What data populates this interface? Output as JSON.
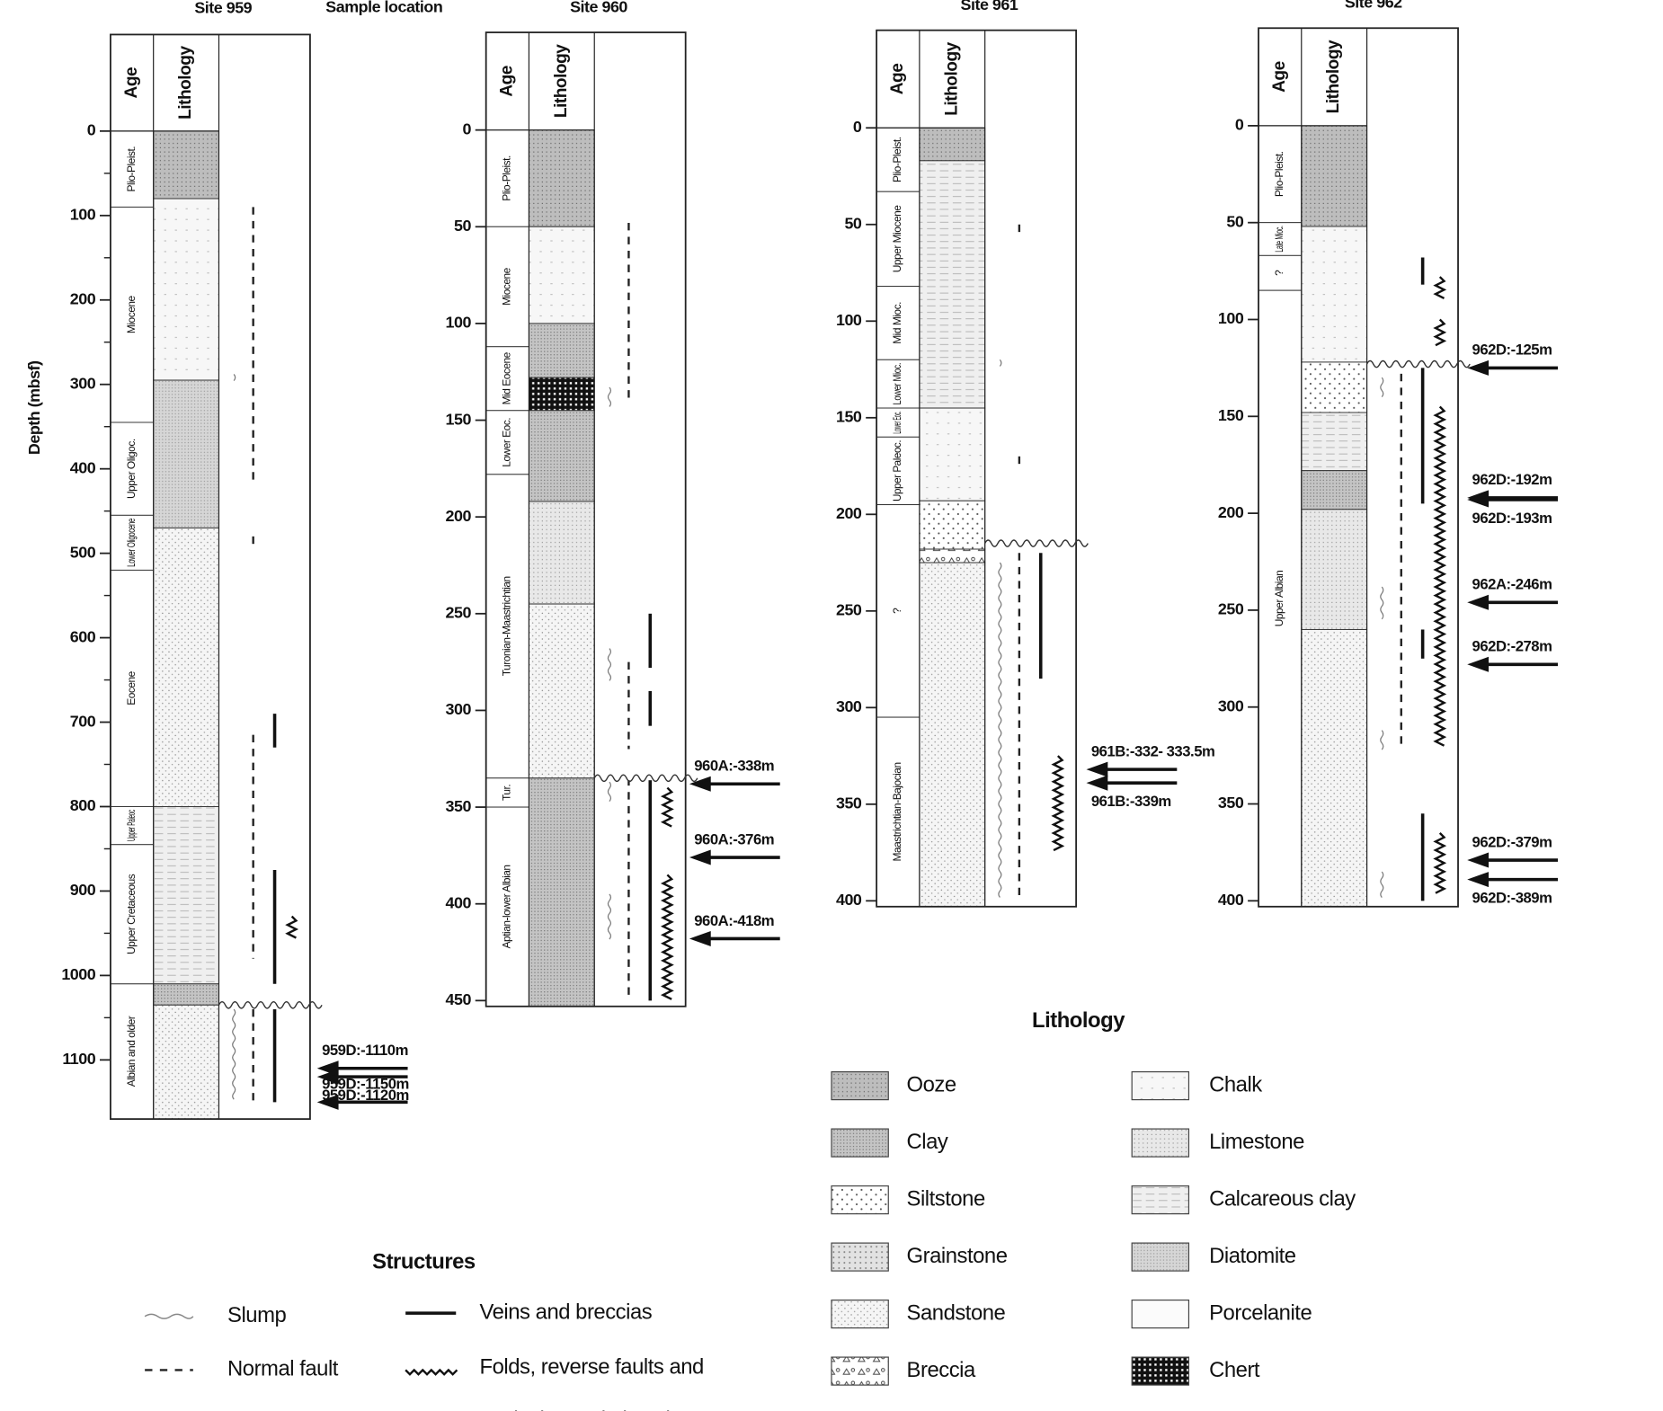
{
  "header": {
    "sample_location": "Sample location",
    "y_axis_label": "Depth (mbsf)"
  },
  "sites": [
    {
      "title": "Site 959",
      "column_headers": [
        "Age",
        "Lithology"
      ],
      "ylim": [
        0,
        1170
      ],
      "ticks": [
        0,
        100,
        200,
        300,
        400,
        500,
        600,
        700,
        800,
        900,
        1000,
        1100
      ],
      "minor_ticks": true,
      "ages": [
        {
          "label": "Plio-Pleist.",
          "top": 0,
          "bottom": 90
        },
        {
          "label": "Miocene",
          "top": 90,
          "bottom": 345
        },
        {
          "label": "Upper Oligoc.",
          "top": 345,
          "bottom": 455
        },
        {
          "label": "Lower Oligocene",
          "top": 455,
          "bottom": 520
        },
        {
          "label": "Eocene",
          "top": 520,
          "bottom": 800
        },
        {
          "label": "Upper Paleoc",
          "top": 800,
          "bottom": 845
        },
        {
          "label": "Upper Cretaceous",
          "top": 845,
          "bottom": 1010
        },
        {
          "label": "Albian and older",
          "top": 1010,
          "bottom": 1170
        }
      ],
      "lithology": [
        {
          "type": "Ooze",
          "top": 0,
          "bottom": 80
        },
        {
          "type": "Chalk",
          "top": 80,
          "bottom": 295
        },
        {
          "type": "Diatomite",
          "top": 295,
          "bottom": 470
        },
        {
          "type": "Sandstone",
          "top": 470,
          "bottom": 800
        },
        {
          "type": "Calcareous clay",
          "top": 800,
          "bottom": 1010
        },
        {
          "type": "Clay",
          "top": 1010,
          "bottom": 1035
        },
        {
          "type": "Sandstone",
          "top": 1035,
          "bottom": 1170
        }
      ],
      "structures": [
        {
          "type": "Normal fault",
          "top": 90,
          "bottom": 420
        },
        {
          "type": "Slump",
          "top": 288,
          "bottom": 300
        },
        {
          "type": "Normal fault",
          "top": 480,
          "bottom": 495
        },
        {
          "type": "Normal fault",
          "top": 715,
          "bottom": 980
        },
        {
          "type": "Veins and breccias",
          "top": 690,
          "bottom": 730
        },
        {
          "type": "Veins and breccias",
          "top": 875,
          "bottom": 1010
        },
        {
          "type": "Folds, reverse faults and",
          "top": 930,
          "bottom": 960
        },
        {
          "type": "Slump",
          "top": 1040,
          "bottom": 1150
        },
        {
          "type": "Normal fault",
          "top": 1040,
          "bottom": 1150
        },
        {
          "type": "Veins and breccias",
          "top": 1040,
          "bottom": 1150
        }
      ],
      "unconformity": 1035,
      "samples": [
        {
          "label": "959D:-1110m",
          "depth": 1110
        },
        {
          "label": "959D:-1120m",
          "depth": 1120
        },
        {
          "label": "959D:-1150m",
          "depth": 1150
        }
      ]
    },
    {
      "title": "Site 960",
      "column_headers": [
        "Age",
        "Lithology"
      ],
      "ylim": [
        0,
        453
      ],
      "ticks": [
        0,
        50,
        100,
        150,
        200,
        250,
        300,
        350,
        400,
        450
      ],
      "minor_ticks": false,
      "ages": [
        {
          "label": "Plio-Pleist.",
          "top": 0,
          "bottom": 50
        },
        {
          "label": "Miocene",
          "top": 50,
          "bottom": 112
        },
        {
          "label": "Mid Eocene",
          "top": 112,
          "bottom": 145
        },
        {
          "label": "Lower Eoc.",
          "top": 145,
          "bottom": 178
        },
        {
          "label": "Turonian-Maastrichtian",
          "top": 178,
          "bottom": 335
        },
        {
          "label": "Tur.",
          "top": 335,
          "bottom": 350
        },
        {
          "label": "Aptian-lower Albian",
          "top": 350,
          "bottom": 453
        }
      ],
      "lithology": [
        {
          "type": "Ooze",
          "top": 0,
          "bottom": 50
        },
        {
          "type": "Chalk",
          "top": 50,
          "bottom": 100
        },
        {
          "type": "Clay",
          "top": 100,
          "bottom": 128
        },
        {
          "type": "Chert",
          "top": 128,
          "bottom": 145
        },
        {
          "type": "Clay",
          "top": 145,
          "bottom": 192
        },
        {
          "type": "Limestone",
          "top": 192,
          "bottom": 245
        },
        {
          "type": "Sandstone",
          "top": 245,
          "bottom": 335
        },
        {
          "type": "Clay",
          "top": 335,
          "bottom": 453
        }
      ],
      "structures": [
        {
          "type": "Normal fault",
          "top": 48,
          "bottom": 140
        },
        {
          "type": "Slump",
          "top": 133,
          "bottom": 143
        },
        {
          "type": "Slump",
          "top": 268,
          "bottom": 285
        },
        {
          "type": "Normal fault",
          "top": 275,
          "bottom": 320
        },
        {
          "type": "Veins and breccias",
          "top": 250,
          "bottom": 278
        },
        {
          "type": "Veins and breccias",
          "top": 290,
          "bottom": 308
        },
        {
          "type": "Slump",
          "top": 337,
          "bottom": 350
        },
        {
          "type": "Normal fault",
          "top": 335,
          "bottom": 450
        },
        {
          "type": "Veins and breccias",
          "top": 335,
          "bottom": 450
        },
        {
          "type": "Folds, reverse faults and",
          "top": 340,
          "bottom": 360
        },
        {
          "type": "Folds, reverse faults and",
          "top": 385,
          "bottom": 450
        },
        {
          "type": "Slump",
          "top": 395,
          "bottom": 420
        }
      ],
      "unconformity": 335,
      "samples": [
        {
          "label": "960A:-338m",
          "depth": 338
        },
        {
          "label": "960A:-376m",
          "depth": 376
        },
        {
          "label": "960A:-418m",
          "depth": 418
        }
      ]
    },
    {
      "title": "Site 961",
      "column_headers": [
        "Age",
        "Lithology"
      ],
      "ylim": [
        0,
        403
      ],
      "ticks": [
        0,
        50,
        100,
        150,
        200,
        250,
        300,
        350,
        400
      ],
      "minor_ticks": false,
      "ages": [
        {
          "label": "Plio-Pleist.",
          "top": 0,
          "bottom": 33
        },
        {
          "label": "Upper Miocene",
          "top": 33,
          "bottom": 82
        },
        {
          "label": "Mid Mioc.",
          "top": 82,
          "bottom": 120
        },
        {
          "label": "Lower Mioc.",
          "top": 120,
          "bottom": 145
        },
        {
          "label": "Lower Eoc.",
          "top": 145,
          "bottom": 160
        },
        {
          "label": "Upper Paleoc.",
          "top": 160,
          "bottom": 195
        },
        {
          "label": "?",
          "top": 195,
          "bottom": 305
        },
        {
          "label": "Maastrichtian-Bajocian",
          "top": 305,
          "bottom": 403
        }
      ],
      "lithology": [
        {
          "type": "Ooze",
          "top": 0,
          "bottom": 17
        },
        {
          "type": "Calcareous clay",
          "top": 17,
          "bottom": 145
        },
        {
          "type": "Chalk",
          "top": 145,
          "bottom": 193
        },
        {
          "type": "Siltstone",
          "top": 193,
          "bottom": 218
        },
        {
          "type": "Breccia",
          "top": 218,
          "bottom": 225
        },
        {
          "type": "Sandstone",
          "top": 225,
          "bottom": 403
        }
      ],
      "structures": [
        {
          "type": "Normal fault",
          "top": 50,
          "bottom": 55
        },
        {
          "type": "Slump",
          "top": 120,
          "bottom": 126
        },
        {
          "type": "Normal fault",
          "top": 170,
          "bottom": 175
        },
        {
          "type": "Slump",
          "top": 225,
          "bottom": 400
        },
        {
          "type": "Normal fault",
          "top": 220,
          "bottom": 400
        },
        {
          "type": "Veins and breccias",
          "top": 220,
          "bottom": 285
        },
        {
          "type": "Folds, reverse faults and",
          "top": 325,
          "bottom": 375
        }
      ],
      "unconformity": 215,
      "samples": [
        {
          "label": "961B:-332- 333.5m",
          "depth": 332
        },
        {
          "label": "961B:-339m",
          "depth": 339
        }
      ]
    },
    {
      "title": "Site 962",
      "column_headers": [
        "Age",
        "Lithology"
      ],
      "ylim": [
        0,
        403
      ],
      "ticks": [
        0,
        50,
        100,
        150,
        200,
        250,
        300,
        350,
        400
      ],
      "minor_ticks": false,
      "ages": [
        {
          "label": "Plio-Pleist.",
          "top": 0,
          "bottom": 50
        },
        {
          "label": "Late Mioc.",
          "top": 50,
          "bottom": 67
        },
        {
          "label": "?",
          "top": 67,
          "bottom": 85
        },
        {
          "label": "Upper Albian",
          "top": 85,
          "bottom": 403
        }
      ],
      "lithology": [
        {
          "type": "Ooze",
          "top": 0,
          "bottom": 52
        },
        {
          "type": "Chalk",
          "top": 52,
          "bottom": 122
        },
        {
          "type": "Siltstone",
          "top": 122,
          "bottom": 148
        },
        {
          "type": "Calcareous clay",
          "top": 148,
          "bottom": 178
        },
        {
          "type": "Clay",
          "top": 178,
          "bottom": 198
        },
        {
          "type": "Limestone",
          "top": 198,
          "bottom": 260
        },
        {
          "type": "Sandstone",
          "top": 260,
          "bottom": 403
        }
      ],
      "structures": [
        {
          "type": "Veins and breccias",
          "top": 68,
          "bottom": 82
        },
        {
          "type": "Folds, reverse faults and",
          "top": 78,
          "bottom": 90
        },
        {
          "type": "Folds, reverse faults and",
          "top": 100,
          "bottom": 115
        },
        {
          "type": "Slump",
          "top": 130,
          "bottom": 142
        },
        {
          "type": "Normal fault",
          "top": 128,
          "bottom": 320
        },
        {
          "type": "Veins and breccias",
          "top": 125,
          "bottom": 195
        },
        {
          "type": "Folds, reverse faults and",
          "top": 145,
          "bottom": 320
        },
        {
          "type": "Slump",
          "top": 238,
          "bottom": 255
        },
        {
          "type": "Slump",
          "top": 312,
          "bottom": 325
        },
        {
          "type": "Veins and breccias",
          "top": 260,
          "bottom": 275
        },
        {
          "type": "Veins and breccias",
          "top": 355,
          "bottom": 400
        },
        {
          "type": "Folds, reverse faults and",
          "top": 365,
          "bottom": 398
        },
        {
          "type": "Slump",
          "top": 385,
          "bottom": 400
        }
      ],
      "unconformity": 123,
      "samples": [
        {
          "label": "962D:-125m",
          "depth": 125
        },
        {
          "label": "962D:-192m",
          "depth": 192
        },
        {
          "label": "962D:-193m",
          "depth": 193
        },
        {
          "label": "962A:-246m",
          "depth": 246
        },
        {
          "label": "962D:-278m",
          "depth": 278
        },
        {
          "label": "962D:-379m",
          "depth": 379
        },
        {
          "label": "962D:-389m",
          "depth": 389
        }
      ]
    }
  ],
  "legend": {
    "lithology": {
      "title": "Lithology",
      "items": [
        "Ooze",
        "Clay",
        "Siltstone",
        "Grainstone",
        "Sandstone",
        "Breccia",
        "Chalk",
        "Limestone",
        "Calcareous clay",
        "Diatomite",
        "Porcelanite",
        "Chert"
      ]
    },
    "structures": {
      "title": "Structures",
      "items": [
        {
          "label": "Slump"
        },
        {
          "label": "Normal fault"
        },
        {
          "label": "Veins and breccias"
        },
        {
          "label": "Folds, reverse faults and",
          "label_line2": "vertical crenulation cleavage"
        }
      ]
    }
  }
}
